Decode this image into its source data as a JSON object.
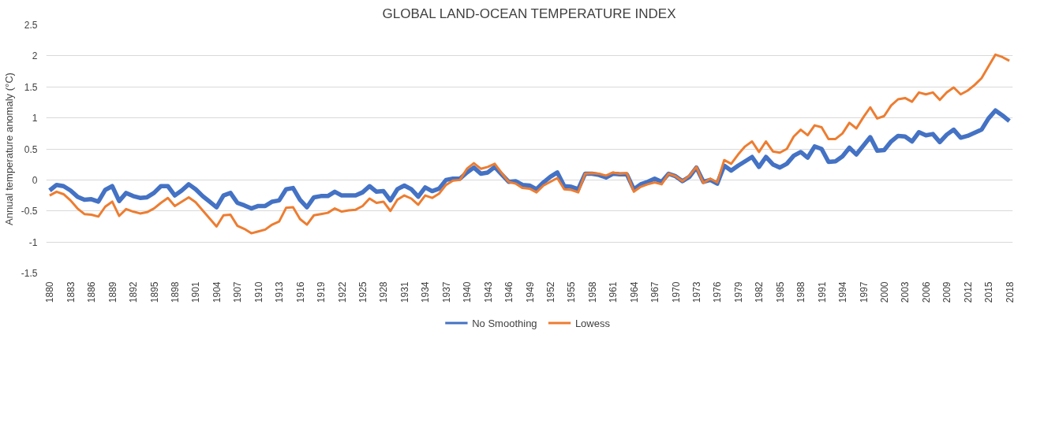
{
  "chart_data": {
    "type": "line",
    "title": "GLOBAL LAND-OCEAN TEMPERATURE INDEX",
    "ylabel": "Annual temperature anomaly (°C)",
    "x": [
      1880,
      1881,
      1882,
      1883,
      1884,
      1885,
      1886,
      1887,
      1888,
      1889,
      1890,
      1891,
      1892,
      1893,
      1894,
      1895,
      1896,
      1897,
      1898,
      1899,
      1900,
      1901,
      1902,
      1903,
      1904,
      1905,
      1906,
      1907,
      1908,
      1909,
      1910,
      1911,
      1912,
      1913,
      1914,
      1915,
      1916,
      1917,
      1918,
      1919,
      1920,
      1921,
      1922,
      1923,
      1924,
      1925,
      1926,
      1927,
      1928,
      1929,
      1930,
      1931,
      1932,
      1933,
      1934,
      1935,
      1936,
      1937,
      1938,
      1939,
      1940,
      1941,
      1942,
      1943,
      1944,
      1945,
      1946,
      1947,
      1948,
      1949,
      1950,
      1951,
      1952,
      1953,
      1954,
      1955,
      1956,
      1957,
      1958,
      1959,
      1960,
      1961,
      1962,
      1963,
      1964,
      1965,
      1966,
      1967,
      1968,
      1969,
      1970,
      1971,
      1972,
      1973,
      1974,
      1975,
      1976,
      1977,
      1978,
      1979,
      1980,
      1981,
      1982,
      1983,
      1984,
      1985,
      1986,
      1987,
      1988,
      1989,
      1990,
      1991,
      1992,
      1993,
      1994,
      1995,
      1996,
      1997,
      1998,
      1999,
      2000,
      2001,
      2002,
      2003,
      2004,
      2005,
      2006,
      2007,
      2008,
      2009,
      2010,
      2011,
      2012,
      2013,
      2014,
      2015,
      2016,
      2017,
      2018
    ],
    "series": [
      {
        "name": "No Smoothing",
        "color": "#4472c4",
        "values": [
          -0.17,
          -0.08,
          -0.1,
          -0.17,
          -0.27,
          -0.32,
          -0.31,
          -0.35,
          -0.16,
          -0.1,
          -0.34,
          -0.21,
          -0.26,
          -0.29,
          -0.28,
          -0.21,
          -0.1,
          -0.1,
          -0.25,
          -0.17,
          -0.07,
          -0.15,
          -0.26,
          -0.35,
          -0.44,
          -0.25,
          -0.21,
          -0.37,
          -0.41,
          -0.46,
          -0.42,
          -0.42,
          -0.35,
          -0.33,
          -0.15,
          -0.13,
          -0.32,
          -0.44,
          -0.28,
          -0.26,
          -0.26,
          -0.19,
          -0.25,
          -0.25,
          -0.25,
          -0.2,
          -0.1,
          -0.19,
          -0.18,
          -0.33,
          -0.15,
          -0.09,
          -0.15,
          -0.27,
          -0.12,
          -0.18,
          -0.14,
          0.0,
          0.02,
          0.02,
          0.12,
          0.2,
          0.1,
          0.12,
          0.21,
          0.09,
          -0.03,
          -0.02,
          -0.08,
          -0.09,
          -0.15,
          -0.04,
          0.05,
          0.12,
          -0.1,
          -0.11,
          -0.15,
          0.1,
          0.1,
          0.08,
          0.04,
          0.1,
          0.09,
          0.09,
          -0.15,
          -0.07,
          -0.03,
          0.02,
          -0.03,
          0.1,
          0.06,
          -0.02,
          0.05,
          0.2,
          -0.03,
          0.0,
          -0.06,
          0.23,
          0.15,
          0.23,
          0.3,
          0.37,
          0.21,
          0.37,
          0.25,
          0.2,
          0.26,
          0.39,
          0.45,
          0.36,
          0.54,
          0.5,
          0.29,
          0.3,
          0.38,
          0.52,
          0.41,
          0.55,
          0.69,
          0.47,
          0.48,
          0.62,
          0.71,
          0.7,
          0.62,
          0.77,
          0.72,
          0.74,
          0.61,
          0.73,
          0.81,
          0.68,
          0.71,
          0.76,
          0.81,
          0.99,
          1.12,
          1.04,
          0.95
        ]
      },
      {
        "name": "Lowess",
        "color": "#ed7d31",
        "values": [
          -0.25,
          -0.19,
          -0.23,
          -0.33,
          -0.46,
          -0.55,
          -0.56,
          -0.59,
          -0.43,
          -0.35,
          -0.58,
          -0.47,
          -0.51,
          -0.54,
          -0.52,
          -0.46,
          -0.37,
          -0.29,
          -0.42,
          -0.35,
          -0.28,
          -0.36,
          -0.49,
          -0.62,
          -0.75,
          -0.57,
          -0.56,
          -0.74,
          -0.79,
          -0.86,
          -0.83,
          -0.8,
          -0.72,
          -0.67,
          -0.45,
          -0.44,
          -0.63,
          -0.72,
          -0.57,
          -0.55,
          -0.53,
          -0.46,
          -0.51,
          -0.49,
          -0.48,
          -0.42,
          -0.3,
          -0.37,
          -0.35,
          -0.5,
          -0.32,
          -0.25,
          -0.3,
          -0.4,
          -0.25,
          -0.29,
          -0.22,
          -0.08,
          -0.01,
          0.0,
          0.18,
          0.27,
          0.18,
          0.21,
          0.26,
          0.11,
          -0.03,
          -0.06,
          -0.13,
          -0.14,
          -0.2,
          -0.09,
          -0.03,
          0.03,
          -0.15,
          -0.16,
          -0.2,
          0.1,
          0.11,
          0.1,
          0.07,
          0.12,
          0.1,
          0.11,
          -0.19,
          -0.11,
          -0.07,
          -0.04,
          -0.07,
          0.1,
          0.06,
          -0.02,
          0.07,
          0.21,
          -0.05,
          0.02,
          -0.04,
          0.32,
          0.26,
          0.41,
          0.54,
          0.62,
          0.45,
          0.62,
          0.46,
          0.44,
          0.5,
          0.7,
          0.81,
          0.72,
          0.88,
          0.85,
          0.66,
          0.66,
          0.75,
          0.92,
          0.83,
          1.01,
          1.17,
          0.99,
          1.03,
          1.2,
          1.3,
          1.32,
          1.26,
          1.41,
          1.38,
          1.41,
          1.29,
          1.41,
          1.49,
          1.38,
          1.44,
          1.53,
          1.64,
          1.83,
          2.02,
          1.98,
          1.92
        ]
      }
    ],
    "xlim": [
      1879.5,
      2018.5
    ],
    "xticks": [
      1880,
      1883,
      1886,
      1889,
      1892,
      1895,
      1898,
      1901,
      1904,
      1907,
      1910,
      1913,
      1916,
      1919,
      1922,
      1925,
      1928,
      1931,
      1934,
      1937,
      1940,
      1943,
      1946,
      1949,
      1952,
      1955,
      1958,
      1961,
      1964,
      1967,
      1970,
      1973,
      1976,
      1979,
      1982,
      1985,
      1988,
      1991,
      1994,
      1997,
      2000,
      2003,
      2006,
      2009,
      2012,
      2015,
      2018
    ],
    "ylim": [
      -1.5,
      2.5
    ],
    "yticks": [
      -1.5,
      -1,
      -0.5,
      0,
      0.5,
      1,
      1.5,
      2,
      2.5
    ],
    "grid": "y",
    "legend": "bottom",
    "marker": "none",
    "line_style": "solid"
  }
}
